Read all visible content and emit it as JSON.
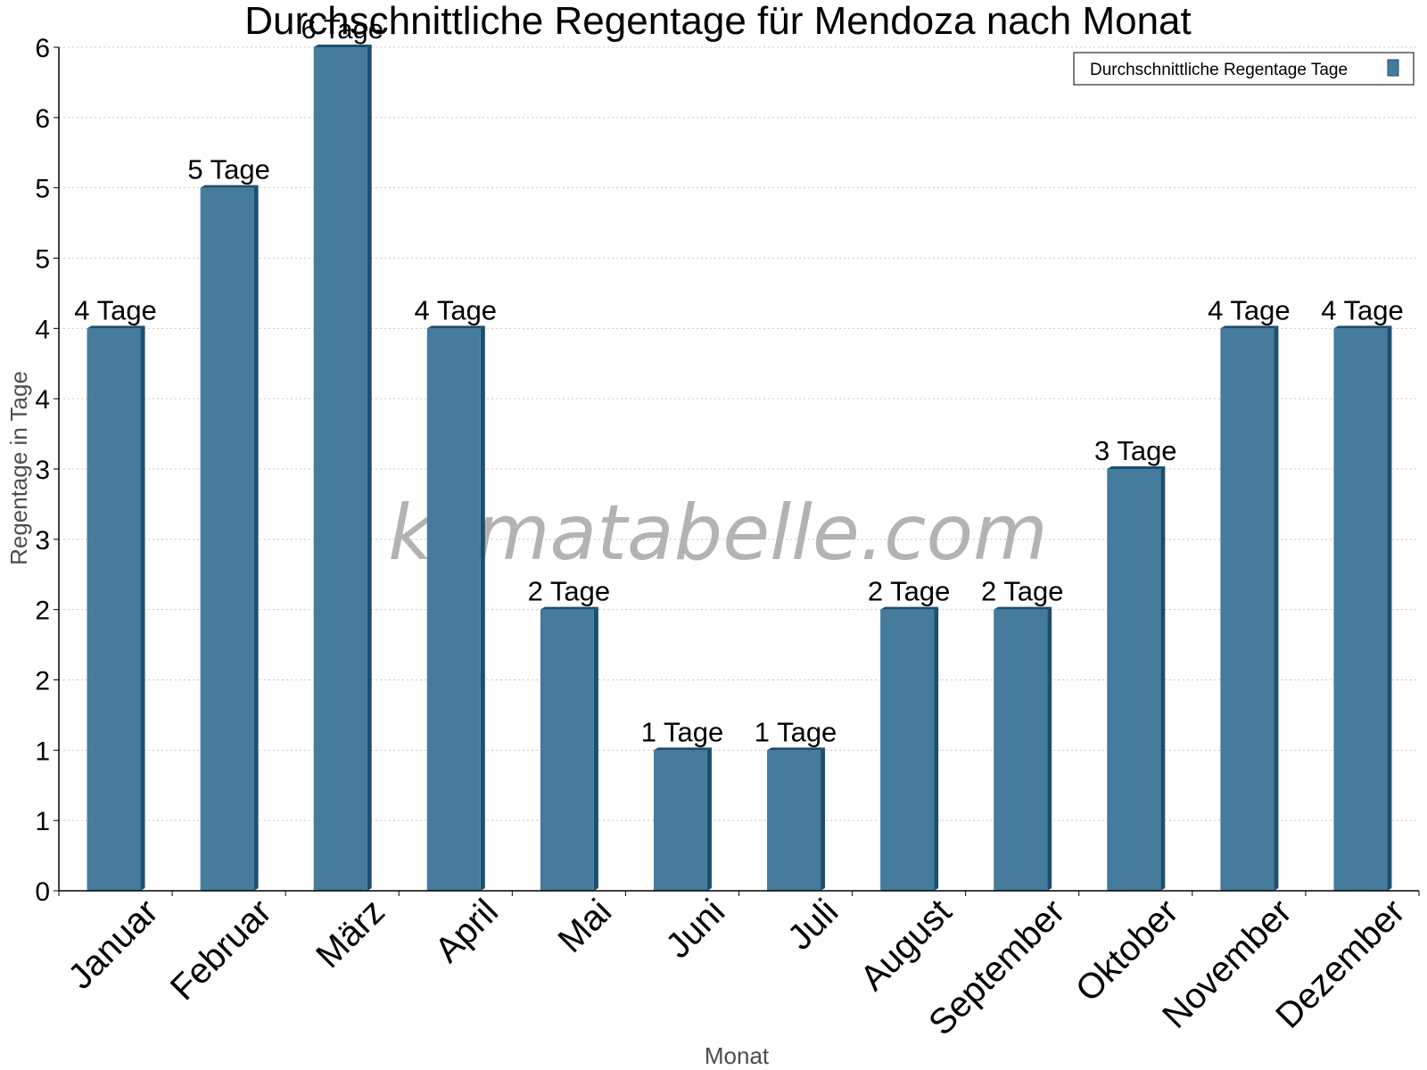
{
  "chart_data": {
    "type": "bar",
    "title": "Durchschnittliche Regentage für Mendoza nach Monat",
    "xlabel": "Monat",
    "ylabel": "Regentage in Tage",
    "categories": [
      "Januar",
      "Februar",
      "März",
      "April",
      "Mai",
      "Juni",
      "Juli",
      "August",
      "September",
      "Oktober",
      "November",
      "Dezember"
    ],
    "series": [
      {
        "name": "Durchschnittliche Regentage Tage",
        "values": [
          4,
          5,
          6,
          4,
          2,
          1,
          1,
          2,
          2,
          3,
          4,
          4
        ],
        "labels": [
          "4 Tage",
          "5 Tage",
          "6 Tage",
          "4 Tage",
          "2 Tage",
          "1 Tage",
          "1 Tage",
          "2 Tage",
          "2 Tage",
          "3 Tage",
          "4 Tage",
          "4 Tage"
        ],
        "color": "#457b9d",
        "edge_color": "#1d4e6e"
      }
    ],
    "ylim": [
      0,
      6
    ],
    "yticks": [
      0,
      0.5,
      1,
      1.5,
      2,
      2.5,
      3,
      3.5,
      4,
      4.5,
      5,
      5.5,
      6
    ],
    "ytick_labels": [
      "0",
      "1",
      "1",
      "2",
      "2",
      "3",
      "3",
      "4",
      "4",
      "5",
      "5",
      "6",
      "6"
    ],
    "grid": true,
    "legend_position": "top-right",
    "watermark": "klimatabelle.com"
  }
}
